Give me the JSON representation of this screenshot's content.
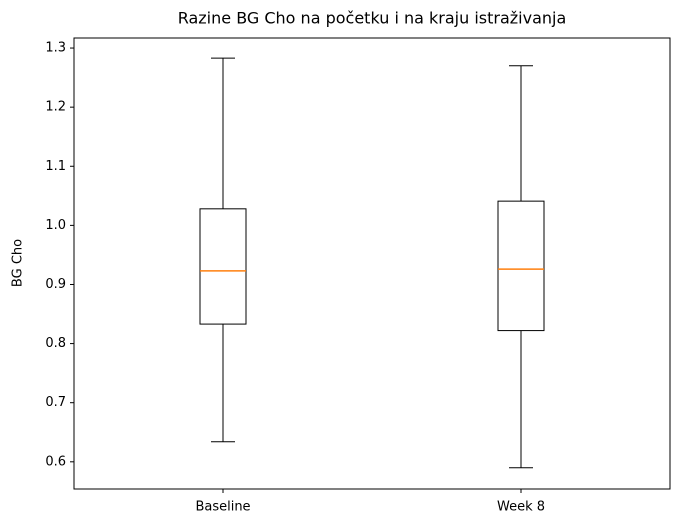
{
  "chart_data": {
    "type": "box",
    "title": "Razine BG Cho na početku i na kraju istraživanja",
    "ylabel": "BG Cho",
    "categories": [
      "Baseline",
      "Week 8"
    ],
    "min": [
      0.634,
      0.59
    ],
    "q1": [
      0.833,
      0.822
    ],
    "median": [
      0.923,
      0.926
    ],
    "q3": [
      1.028,
      1.041
    ],
    "max": [
      1.283,
      1.27
    ],
    "box_color": "#000000",
    "median_color": "#ff7f0e",
    "ylim": [
      0.554,
      1.317
    ],
    "yticks": [
      0.6,
      0.7,
      0.8,
      0.9,
      {
        "value": 1.0,
        "label": "1.0"
      },
      1.1,
      1.2,
      1.3
    ],
    "grid": false
  }
}
